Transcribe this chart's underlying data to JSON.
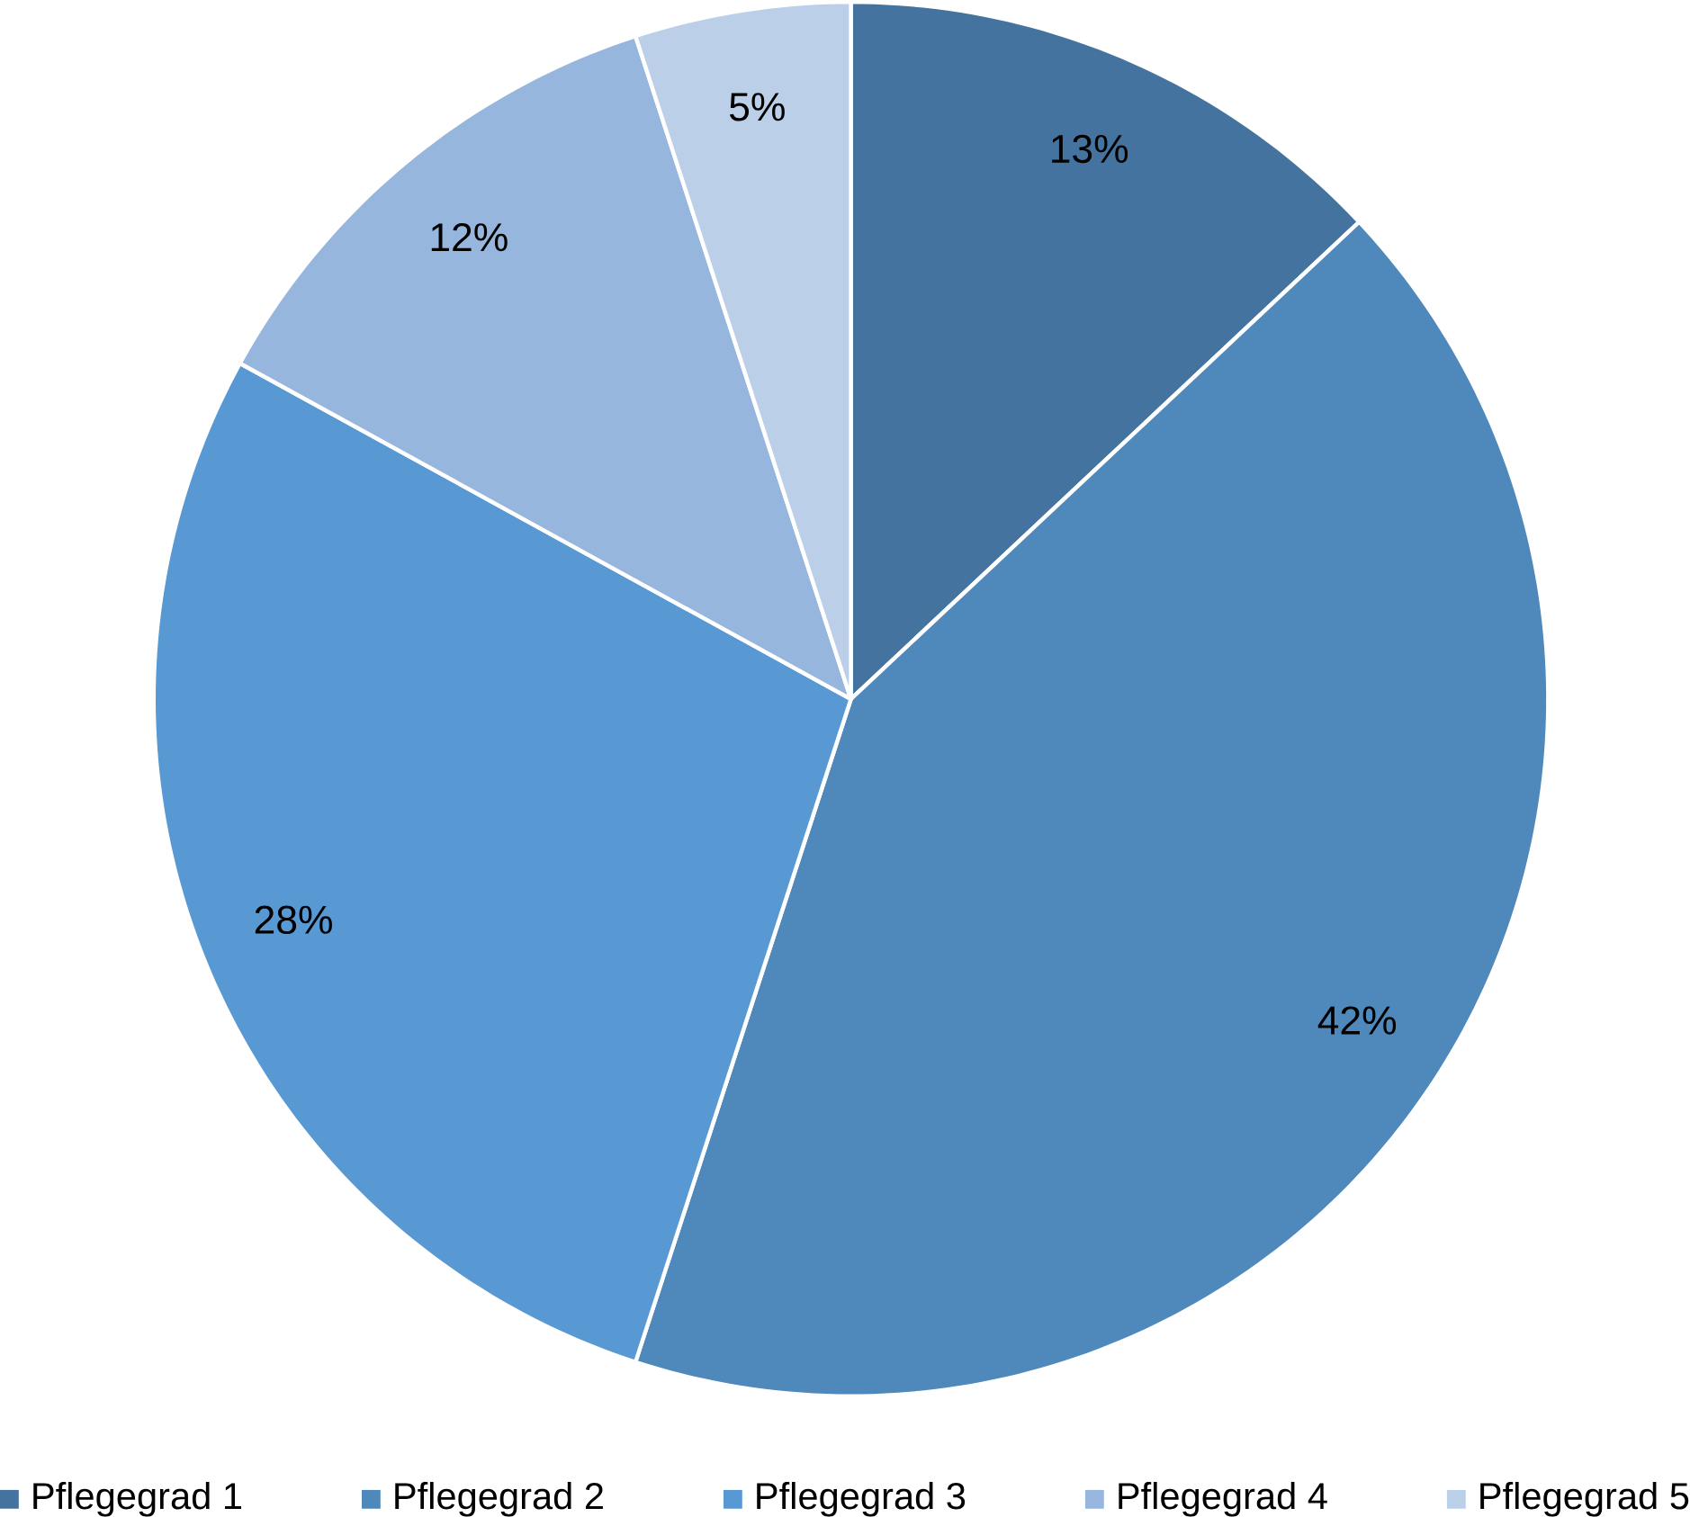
{
  "chart_data": {
    "type": "pie",
    "categories": [
      "Pflegegrad 1",
      "Pflegegrad 2",
      "Pflegegrad 3",
      "Pflegegrad 4",
      "Pflegegrad 5"
    ],
    "values": [
      13,
      42,
      28,
      12,
      5
    ],
    "value_labels": [
      "13%",
      "42%",
      "28%",
      "12%",
      "5%"
    ],
    "colors": [
      "#44739f",
      "#4f88bb",
      "#5899d4",
      "#97b6de",
      "#bccfe9"
    ],
    "legend": "bottom"
  }
}
